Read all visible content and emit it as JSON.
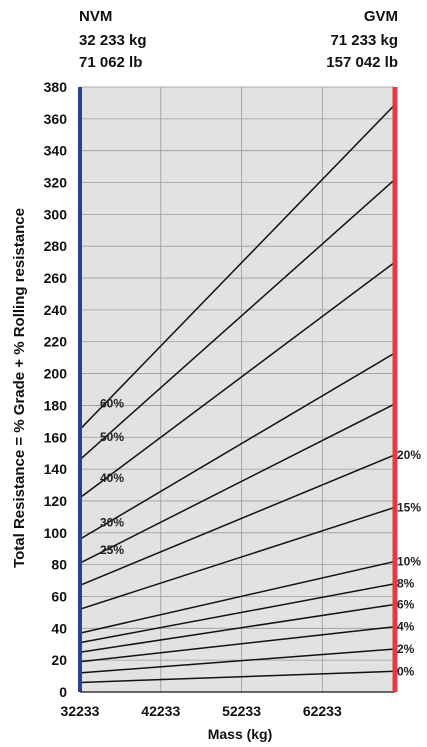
{
  "header": {
    "left": {
      "title": "NVM",
      "kg": "32 233 kg",
      "lb": "71 062 lb"
    },
    "right": {
      "title": "GVM",
      "kg": "71 233 kg",
      "lb": "157 042 lb"
    }
  },
  "chart_data": {
    "type": "line",
    "xlabel": "Mass (kg)",
    "ylabel": "Total Resistance = % Grade + % Rolling resistance",
    "xlim": [
      32233,
      71233
    ],
    "ylim": [
      0,
      380
    ],
    "x_ticks": [
      32233,
      42233,
      52233,
      62233
    ],
    "y_ticks": [
      0,
      20,
      40,
      60,
      80,
      100,
      120,
      140,
      160,
      180,
      200,
      220,
      240,
      260,
      280,
      300,
      320,
      340,
      360,
      380
    ],
    "grid": true,
    "colors": {
      "nvm_line": "#2a3f95",
      "gvm_line": "#e53a40",
      "plot_bg": "#e2e2e2",
      "grid": "#9a9a9a",
      "series": "#111111"
    },
    "series": [
      {
        "name": "0%",
        "label_side": "right",
        "values": [
          [
            32233,
            6
          ],
          [
            71233,
            13
          ]
        ]
      },
      {
        "name": "2%",
        "label_side": "right",
        "values": [
          [
            32233,
            12
          ],
          [
            71233,
            27
          ]
        ]
      },
      {
        "name": "4%",
        "label_side": "right",
        "values": [
          [
            32233,
            19
          ],
          [
            71233,
            41
          ]
        ]
      },
      {
        "name": "6%",
        "label_side": "right",
        "values": [
          [
            32233,
            25
          ],
          [
            71233,
            55
          ]
        ]
      },
      {
        "name": "8%",
        "label_side": "right",
        "values": [
          [
            32233,
            31
          ],
          [
            71233,
            68
          ]
        ]
      },
      {
        "name": "10%",
        "label_side": "right",
        "values": [
          [
            32233,
            37
          ],
          [
            71233,
            82
          ]
        ]
      },
      {
        "name": "15%",
        "label_side": "right",
        "values": [
          [
            32233,
            52
          ],
          [
            71233,
            116
          ]
        ]
      },
      {
        "name": "20%",
        "label_side": "right",
        "values": [
          [
            32233,
            67
          ],
          [
            71233,
            149
          ]
        ]
      },
      {
        "name": "25%",
        "label_side": "left",
        "values": [
          [
            32233,
            81
          ],
          [
            71233,
            181
          ]
        ]
      },
      {
        "name": "30%",
        "label_side": "left",
        "values": [
          [
            32233,
            96
          ],
          [
            71233,
            213
          ]
        ]
      },
      {
        "name": "40%",
        "label_side": "left",
        "values": [
          [
            32233,
            122
          ],
          [
            71233,
            270
          ]
        ]
      },
      {
        "name": "50%",
        "label_side": "left",
        "values": [
          [
            32233,
            146
          ],
          [
            71233,
            322
          ]
        ]
      },
      {
        "name": "60%",
        "label_side": "left",
        "values": [
          [
            32233,
            165
          ],
          [
            71233,
            369
          ]
        ]
      }
    ]
  }
}
